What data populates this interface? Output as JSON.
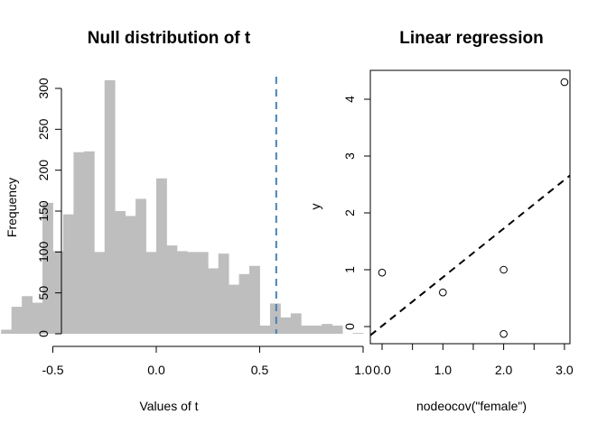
{
  "chart_data": [
    {
      "type": "bar",
      "title": "Null distribution of t",
      "xlabel": "Values of t",
      "ylabel": "Frequency",
      "xlim": [
        -0.8,
        1.0
      ],
      "ylim": [
        0,
        310
      ],
      "xticks": [
        -0.5,
        0.0,
        0.5,
        1.0
      ],
      "xtick_labels": [
        "-0.5",
        "0.0",
        "0.5",
        "1.0"
      ],
      "yticks": [
        0,
        50,
        100,
        150,
        200,
        250,
        300
      ],
      "ytick_labels": [
        "0",
        "50",
        "100",
        "150",
        "200",
        "250",
        "300"
      ],
      "bin_width": 0.05,
      "bin_starts": [
        -0.75,
        -0.7,
        -0.65,
        -0.6,
        -0.55,
        -0.5,
        -0.45,
        -0.4,
        -0.35,
        -0.3,
        -0.25,
        -0.2,
        -0.15,
        -0.1,
        -0.05,
        0.0,
        0.05,
        0.1,
        0.15,
        0.2,
        0.25,
        0.3,
        0.35,
        0.4,
        0.45,
        0.5,
        0.55,
        0.6,
        0.65,
        0.7,
        0.75,
        0.8,
        0.85,
        0.9,
        0.95
      ],
      "values": [
        5,
        33,
        46,
        38,
        160,
        101,
        146,
        222,
        223,
        100,
        310,
        150,
        144,
        165,
        100,
        190,
        108,
        101,
        100,
        100,
        80,
        98,
        60,
        73,
        83,
        10,
        37,
        20,
        25,
        10,
        10,
        12,
        10,
        0,
        1
      ],
      "color_bars": "#bebebe",
      "observed_line": {
        "x": 0.58,
        "color": "#4682b4",
        "style": "dashed"
      }
    },
    {
      "type": "scatter",
      "title": "Linear regression",
      "xlabel": "nodeocov(\"female\")",
      "ylabel": "y",
      "xlim": [
        -0.12,
        3.12
      ],
      "ylim": [
        -0.18,
        4.5
      ],
      "xticks": [
        0.0,
        0.5,
        1.0,
        1.5,
        2.0,
        2.5,
        3.0
      ],
      "xtick_labels": [
        "0.0",
        "",
        "1.0",
        "",
        "2.0",
        "",
        "3.0"
      ],
      "yticks": [
        0,
        1,
        2,
        3,
        4
      ],
      "ytick_labels": [
        "0",
        "1",
        "2",
        "3",
        "4"
      ],
      "points": [
        {
          "x": 0.0,
          "y": 0.95
        },
        {
          "x": 1.0,
          "y": 0.6
        },
        {
          "x": 2.0,
          "y": 1.0
        },
        {
          "x": 2.0,
          "y": -0.13
        },
        {
          "x": 3.0,
          "y": 4.3
        }
      ],
      "regression_line": {
        "intercept": -0.05,
        "slope": 0.868,
        "style": "dashed",
        "color": "#000000"
      }
    }
  ]
}
